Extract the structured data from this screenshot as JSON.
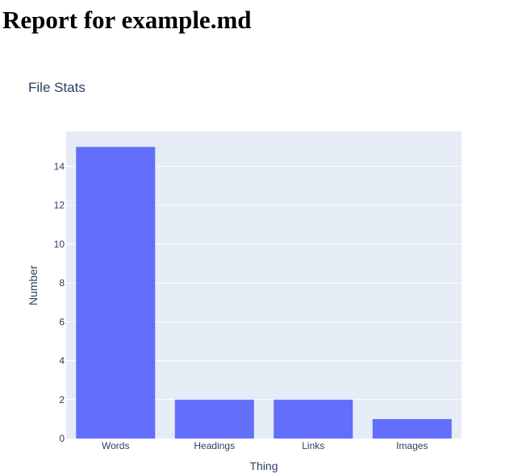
{
  "report": {
    "title": "Report for example.md"
  },
  "colors": {
    "bar": "#636efa",
    "plot_bg": "#e5ecf6",
    "text": "#2a3f5f",
    "grid": "#ffffff"
  },
  "chart_data": {
    "type": "bar",
    "title": "File Stats",
    "xlabel": "Thing",
    "ylabel": "Number",
    "categories": [
      "Words",
      "Headings",
      "Links",
      "Images"
    ],
    "values": [
      15,
      2,
      2,
      1
    ],
    "ylim": [
      0,
      15.8
    ],
    "yticks": [
      0,
      2,
      4,
      6,
      8,
      10,
      12,
      14
    ],
    "grid": true,
    "legend": "none"
  }
}
